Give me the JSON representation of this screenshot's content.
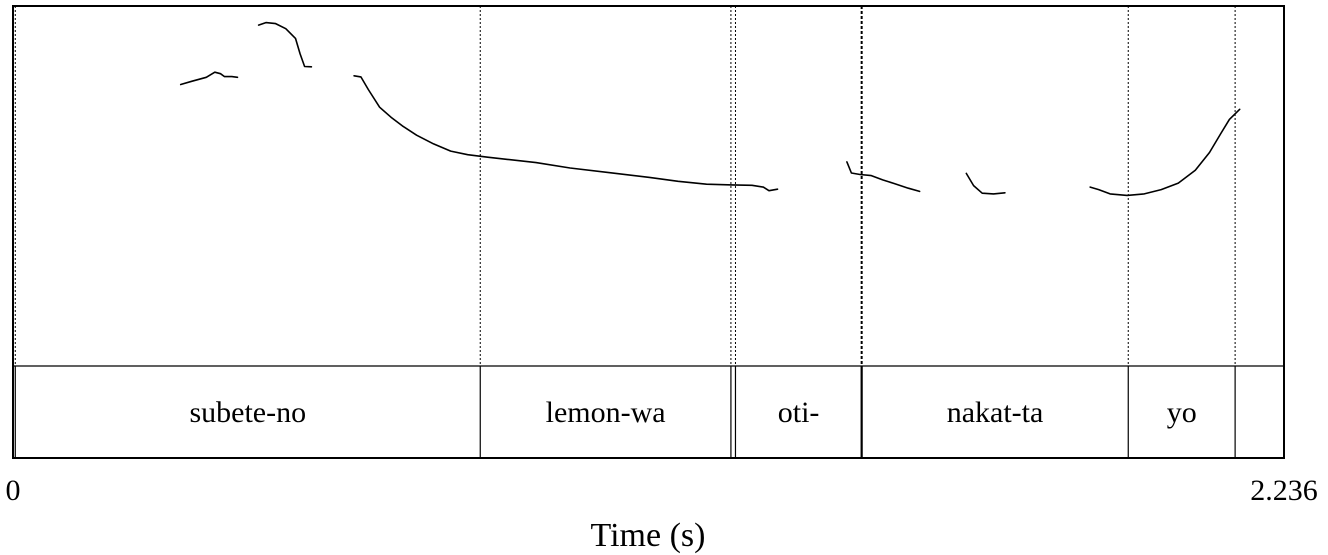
{
  "chart_data": {
    "type": "line",
    "title": "",
    "xlabel": "Time (s)",
    "ylabel": "",
    "xlim": [
      0,
      2.236
    ],
    "x_ticks": [
      "0",
      "2.236"
    ],
    "grid": false,
    "legend": "none",
    "pitch_segments": [
      {
        "points": [
          [
            0.295,
            0.782
          ],
          [
            0.315,
            0.791
          ],
          [
            0.34,
            0.802
          ],
          [
            0.355,
            0.816
          ],
          [
            0.365,
            0.812
          ],
          [
            0.372,
            0.804
          ],
          [
            0.385,
            0.804
          ],
          [
            0.395,
            0.802
          ]
        ]
      },
      {
        "points": [
          [
            0.432,
            0.947
          ],
          [
            0.445,
            0.954
          ],
          [
            0.462,
            0.951
          ],
          [
            0.48,
            0.937
          ],
          [
            0.497,
            0.91
          ],
          [
            0.505,
            0.867
          ],
          [
            0.513,
            0.832
          ],
          [
            0.525,
            0.831
          ]
        ]
      },
      {
        "points": [
          [
            0.6,
            0.806
          ],
          [
            0.612,
            0.803
          ],
          [
            0.625,
            0.768
          ],
          [
            0.645,
            0.719
          ],
          [
            0.665,
            0.691
          ],
          [
            0.685,
            0.667
          ],
          [
            0.71,
            0.641
          ],
          [
            0.74,
            0.617
          ],
          [
            0.77,
            0.597
          ],
          [
            0.8,
            0.587
          ],
          [
            0.835,
            0.58
          ],
          [
            0.87,
            0.574
          ],
          [
            0.92,
            0.565
          ],
          [
            0.98,
            0.55
          ],
          [
            1.05,
            0.537
          ],
          [
            1.12,
            0.524
          ],
          [
            1.17,
            0.513
          ],
          [
            1.22,
            0.505
          ],
          [
            1.265,
            0.503
          ],
          [
            1.3,
            0.502
          ],
          [
            1.32,
            0.497
          ],
          [
            1.33,
            0.487
          ],
          [
            1.345,
            0.491
          ]
        ]
      },
      {
        "points": [
          [
            1.467,
            0.567
          ],
          [
            1.475,
            0.536
          ],
          [
            1.49,
            0.532
          ],
          [
            1.51,
            0.529
          ],
          [
            1.53,
            0.517
          ],
          [
            1.55,
            0.507
          ],
          [
            1.575,
            0.494
          ],
          [
            1.595,
            0.485
          ]
        ]
      },
      {
        "points": [
          [
            1.677,
            0.535
          ],
          [
            1.69,
            0.501
          ],
          [
            1.705,
            0.48
          ],
          [
            1.725,
            0.478
          ],
          [
            1.745,
            0.481
          ]
        ]
      },
      {
        "points": [
          [
            1.895,
            0.497
          ],
          [
            1.91,
            0.49
          ],
          [
            1.93,
            0.478
          ],
          [
            1.96,
            0.474
          ],
          [
            1.99,
            0.478
          ],
          [
            2.02,
            0.49
          ],
          [
            2.05,
            0.508
          ],
          [
            2.08,
            0.544
          ],
          [
            2.105,
            0.593
          ],
          [
            2.125,
            0.646
          ],
          [
            2.14,
            0.685
          ],
          [
            2.158,
            0.713
          ]
        ]
      }
    ],
    "boundaries": [
      {
        "t": 0.004,
        "style": "thin"
      },
      {
        "t": 0.822,
        "style": "thin"
      },
      {
        "t": 1.263,
        "style": "thin"
      },
      {
        "t": 1.271,
        "style": "thin"
      },
      {
        "t": 1.493,
        "style": "thick"
      },
      {
        "t": 1.962,
        "style": "thin"
      },
      {
        "t": 2.15,
        "style": "thin"
      }
    ],
    "intervals": [
      {
        "label": "subete-no",
        "start": 0.004,
        "end": 0.822
      },
      {
        "label": "lemon-wa",
        "start": 0.822,
        "end": 1.263
      },
      {
        "label": "",
        "start": 1.263,
        "end": 1.271
      },
      {
        "label": "oti-",
        "start": 1.271,
        "end": 1.493
      },
      {
        "label": "nakat-ta",
        "start": 1.493,
        "end": 1.962
      },
      {
        "label": "yo",
        "start": 1.962,
        "end": 2.15
      },
      {
        "label": "",
        "start": 2.15,
        "end": 2.236
      }
    ]
  }
}
